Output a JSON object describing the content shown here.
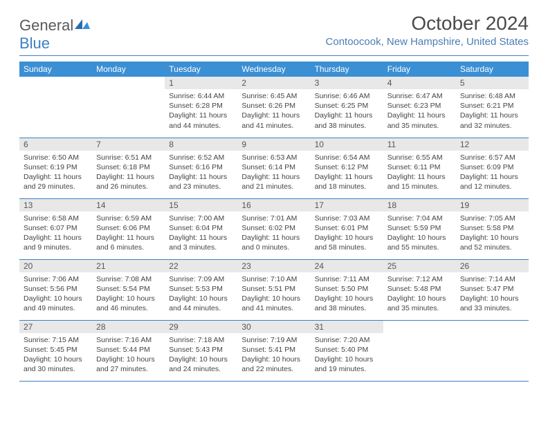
{
  "logo": {
    "text1": "General",
    "text2": "Blue"
  },
  "title": "October 2024",
  "location": "Contoocook, New Hampshire, United States",
  "colors": {
    "header_bg": "#3b8fd4",
    "header_text": "#ffffff",
    "accent": "#3b7fc4",
    "daynum_bg": "#e8e8e8",
    "body_text": "#444444",
    "title_text": "#4a4a4a",
    "location_text": "#4a7db5"
  },
  "weekdays": [
    "Sunday",
    "Monday",
    "Tuesday",
    "Wednesday",
    "Thursday",
    "Friday",
    "Saturday"
  ],
  "weeks": [
    [
      null,
      null,
      {
        "n": "1",
        "sr": "Sunrise: 6:44 AM",
        "ss": "Sunset: 6:28 PM",
        "dl": "Daylight: 11 hours and 44 minutes."
      },
      {
        "n": "2",
        "sr": "Sunrise: 6:45 AM",
        "ss": "Sunset: 6:26 PM",
        "dl": "Daylight: 11 hours and 41 minutes."
      },
      {
        "n": "3",
        "sr": "Sunrise: 6:46 AM",
        "ss": "Sunset: 6:25 PM",
        "dl": "Daylight: 11 hours and 38 minutes."
      },
      {
        "n": "4",
        "sr": "Sunrise: 6:47 AM",
        "ss": "Sunset: 6:23 PM",
        "dl": "Daylight: 11 hours and 35 minutes."
      },
      {
        "n": "5",
        "sr": "Sunrise: 6:48 AM",
        "ss": "Sunset: 6:21 PM",
        "dl": "Daylight: 11 hours and 32 minutes."
      }
    ],
    [
      {
        "n": "6",
        "sr": "Sunrise: 6:50 AM",
        "ss": "Sunset: 6:19 PM",
        "dl": "Daylight: 11 hours and 29 minutes."
      },
      {
        "n": "7",
        "sr": "Sunrise: 6:51 AM",
        "ss": "Sunset: 6:18 PM",
        "dl": "Daylight: 11 hours and 26 minutes."
      },
      {
        "n": "8",
        "sr": "Sunrise: 6:52 AM",
        "ss": "Sunset: 6:16 PM",
        "dl": "Daylight: 11 hours and 23 minutes."
      },
      {
        "n": "9",
        "sr": "Sunrise: 6:53 AM",
        "ss": "Sunset: 6:14 PM",
        "dl": "Daylight: 11 hours and 21 minutes."
      },
      {
        "n": "10",
        "sr": "Sunrise: 6:54 AM",
        "ss": "Sunset: 6:12 PM",
        "dl": "Daylight: 11 hours and 18 minutes."
      },
      {
        "n": "11",
        "sr": "Sunrise: 6:55 AM",
        "ss": "Sunset: 6:11 PM",
        "dl": "Daylight: 11 hours and 15 minutes."
      },
      {
        "n": "12",
        "sr": "Sunrise: 6:57 AM",
        "ss": "Sunset: 6:09 PM",
        "dl": "Daylight: 11 hours and 12 minutes."
      }
    ],
    [
      {
        "n": "13",
        "sr": "Sunrise: 6:58 AM",
        "ss": "Sunset: 6:07 PM",
        "dl": "Daylight: 11 hours and 9 minutes."
      },
      {
        "n": "14",
        "sr": "Sunrise: 6:59 AM",
        "ss": "Sunset: 6:06 PM",
        "dl": "Daylight: 11 hours and 6 minutes."
      },
      {
        "n": "15",
        "sr": "Sunrise: 7:00 AM",
        "ss": "Sunset: 6:04 PM",
        "dl": "Daylight: 11 hours and 3 minutes."
      },
      {
        "n": "16",
        "sr": "Sunrise: 7:01 AM",
        "ss": "Sunset: 6:02 PM",
        "dl": "Daylight: 11 hours and 0 minutes."
      },
      {
        "n": "17",
        "sr": "Sunrise: 7:03 AM",
        "ss": "Sunset: 6:01 PM",
        "dl": "Daylight: 10 hours and 58 minutes."
      },
      {
        "n": "18",
        "sr": "Sunrise: 7:04 AM",
        "ss": "Sunset: 5:59 PM",
        "dl": "Daylight: 10 hours and 55 minutes."
      },
      {
        "n": "19",
        "sr": "Sunrise: 7:05 AM",
        "ss": "Sunset: 5:58 PM",
        "dl": "Daylight: 10 hours and 52 minutes."
      }
    ],
    [
      {
        "n": "20",
        "sr": "Sunrise: 7:06 AM",
        "ss": "Sunset: 5:56 PM",
        "dl": "Daylight: 10 hours and 49 minutes."
      },
      {
        "n": "21",
        "sr": "Sunrise: 7:08 AM",
        "ss": "Sunset: 5:54 PM",
        "dl": "Daylight: 10 hours and 46 minutes."
      },
      {
        "n": "22",
        "sr": "Sunrise: 7:09 AM",
        "ss": "Sunset: 5:53 PM",
        "dl": "Daylight: 10 hours and 44 minutes."
      },
      {
        "n": "23",
        "sr": "Sunrise: 7:10 AM",
        "ss": "Sunset: 5:51 PM",
        "dl": "Daylight: 10 hours and 41 minutes."
      },
      {
        "n": "24",
        "sr": "Sunrise: 7:11 AM",
        "ss": "Sunset: 5:50 PM",
        "dl": "Daylight: 10 hours and 38 minutes."
      },
      {
        "n": "25",
        "sr": "Sunrise: 7:12 AM",
        "ss": "Sunset: 5:48 PM",
        "dl": "Daylight: 10 hours and 35 minutes."
      },
      {
        "n": "26",
        "sr": "Sunrise: 7:14 AM",
        "ss": "Sunset: 5:47 PM",
        "dl": "Daylight: 10 hours and 33 minutes."
      }
    ],
    [
      {
        "n": "27",
        "sr": "Sunrise: 7:15 AM",
        "ss": "Sunset: 5:45 PM",
        "dl": "Daylight: 10 hours and 30 minutes."
      },
      {
        "n": "28",
        "sr": "Sunrise: 7:16 AM",
        "ss": "Sunset: 5:44 PM",
        "dl": "Daylight: 10 hours and 27 minutes."
      },
      {
        "n": "29",
        "sr": "Sunrise: 7:18 AM",
        "ss": "Sunset: 5:43 PM",
        "dl": "Daylight: 10 hours and 24 minutes."
      },
      {
        "n": "30",
        "sr": "Sunrise: 7:19 AM",
        "ss": "Sunset: 5:41 PM",
        "dl": "Daylight: 10 hours and 22 minutes."
      },
      {
        "n": "31",
        "sr": "Sunrise: 7:20 AM",
        "ss": "Sunset: 5:40 PM",
        "dl": "Daylight: 10 hours and 19 minutes."
      },
      null,
      null
    ]
  ]
}
